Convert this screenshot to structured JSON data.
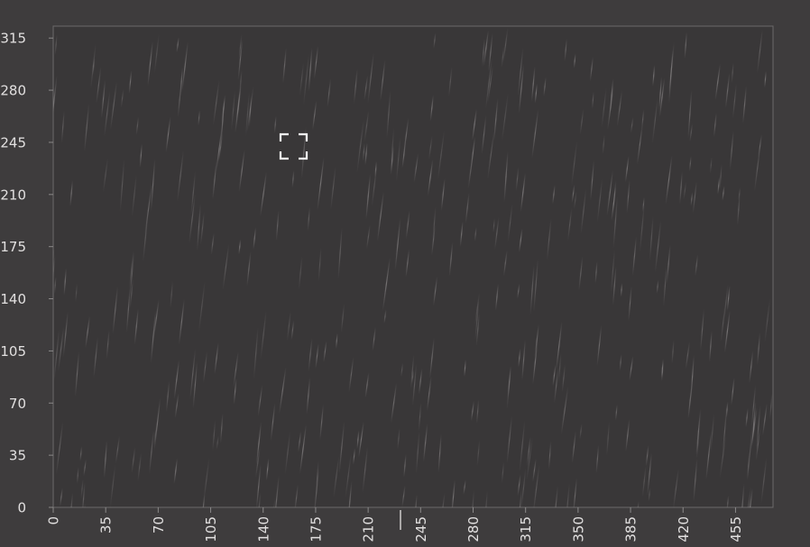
{
  "chart_data": {
    "type": "plot",
    "xlim": [
      0,
      480
    ],
    "xticks": [
      0,
      35,
      70,
      105,
      140,
      175,
      210,
      245,
      280,
      315,
      350,
      385,
      420,
      455
    ],
    "ylim": [
      0,
      323
    ],
    "yticks": [
      0,
      35,
      70,
      105,
      140,
      175,
      210,
      245,
      280,
      315
    ]
  }
}
